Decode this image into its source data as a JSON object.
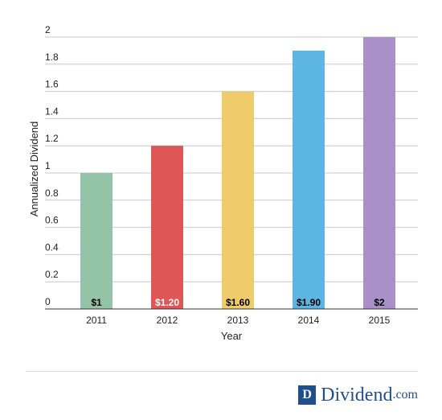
{
  "chart_data": {
    "type": "bar",
    "categories": [
      "2011",
      "2012",
      "2013",
      "2014",
      "2015"
    ],
    "values": [
      1,
      1.2,
      1.6,
      1.9,
      2
    ],
    "data_labels": [
      "$1",
      "$1.20",
      "$1.60",
      "$1.90",
      "$2"
    ],
    "colors": [
      "#93c4a8",
      "#de5656",
      "#efcb6b",
      "#5db5e3",
      "#a990c8"
    ],
    "label_colors": [
      "#000000",
      "#ffffff",
      "#000000",
      "#000000",
      "#000000"
    ],
    "xlabel": "Year",
    "ylabel": "Annualized Dividend",
    "ylim": [
      0,
      2
    ],
    "yticks": [
      "0",
      "0.2",
      "0.4",
      "0.6",
      "0.8",
      "1",
      "1.2",
      "1.4",
      "1.6",
      "1.8",
      "2"
    ],
    "grid": true
  },
  "brand": {
    "mark": "D",
    "name": "Dividend",
    "tld": ".com",
    "color": "#1f4e8c"
  }
}
